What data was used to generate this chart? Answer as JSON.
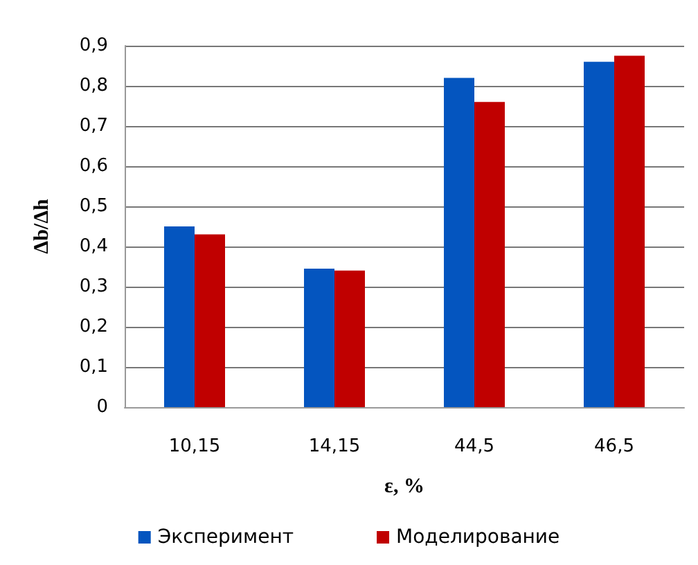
{
  "chart_data": {
    "type": "bar",
    "xlabel": "ε, %",
    "ylabel": "Δb/Δh",
    "categories": [
      "10,15",
      "14,15",
      "44,5",
      "46,5"
    ],
    "series": [
      {
        "name": "Эксперимент",
        "color": "#0455bf",
        "values": [
          0.45,
          0.345,
          0.82,
          0.86
        ]
      },
      {
        "name": "Моделирование",
        "color": "#c00000",
        "values": [
          0.43,
          0.34,
          0.76,
          0.875
        ]
      }
    ],
    "ylim": [
      0,
      0.9
    ],
    "yticks": [
      {
        "value": 0,
        "label": "0"
      },
      {
        "value": 0.1,
        "label": "0,1"
      },
      {
        "value": 0.2,
        "label": "0,2"
      },
      {
        "value": 0.3,
        "label": "0,3"
      },
      {
        "value": 0.4,
        "label": "0,4"
      },
      {
        "value": 0.5,
        "label": "0,5"
      },
      {
        "value": 0.6,
        "label": "0,6"
      },
      {
        "value": 0.7,
        "label": "0,7"
      },
      {
        "value": 0.8,
        "label": "0,8"
      },
      {
        "value": 0.9,
        "label": "0,9"
      }
    ],
    "grid": true,
    "legend": "bottom"
  }
}
